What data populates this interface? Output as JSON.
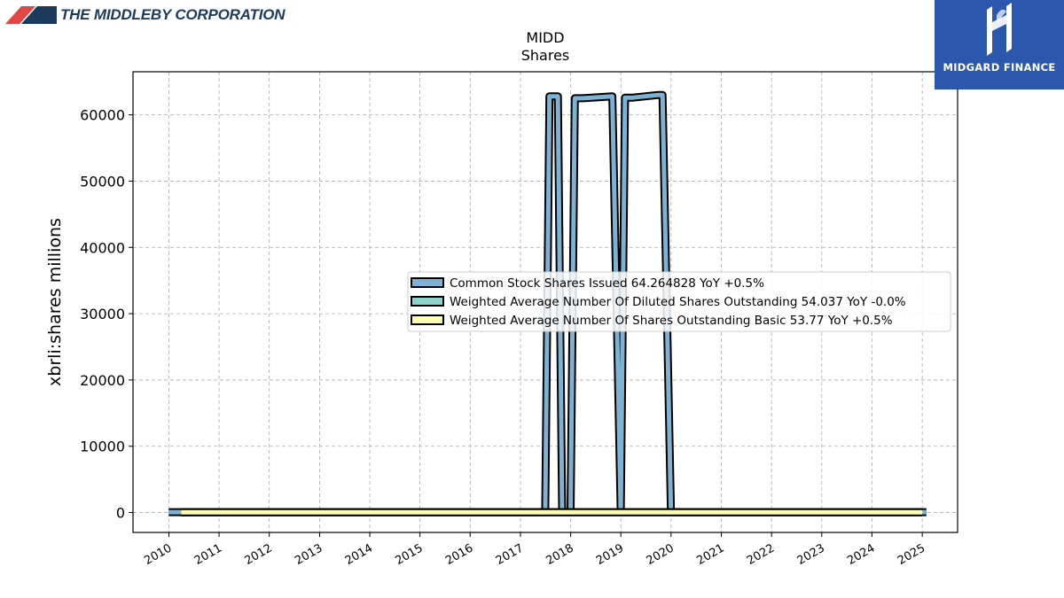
{
  "brand": {
    "left_name": "THE MIDDLEBY CORPORATION",
    "right_name": "MIDGARD FINANCE",
    "right_bg": "#2b57ad",
    "left_accent": "#e04848",
    "left_dark": "#1b3a5c"
  },
  "chart_data": {
    "type": "area",
    "title": "MIDD",
    "subtitle": "Shares",
    "xlabel": "",
    "ylabel": "xbrli:shares millions",
    "xlim": [
      "2009-04-15",
      "2025-09-15"
    ],
    "ylim": [
      -3000,
      66500
    ],
    "yticks": [
      0,
      10000,
      20000,
      30000,
      40000,
      50000,
      60000
    ],
    "ytick_labels": [
      "0",
      "10000",
      "20000",
      "30000",
      "40000",
      "50000",
      "60000"
    ],
    "xtick_labels": [
      "2010",
      "2011",
      "2012",
      "2013",
      "2014",
      "2015",
      "2016",
      "2017",
      "2018",
      "2019",
      "2020",
      "2021",
      "2022",
      "2023",
      "2024",
      "2025"
    ],
    "grid": true,
    "legend_position": "center-right",
    "series": [
      {
        "name": "Common Stock Shares Issued  64.264828 YoY +0.5%",
        "color": "#7fb1d3",
        "x": [
          "2009-12-31",
          "2017-06-30",
          "2017-07-31",
          "2017-09-30",
          "2017-10-31",
          "2017-12-31",
          "2018-01-31",
          "2018-03-31",
          "2018-10-31",
          "2018-12-31",
          "2019-01-31",
          "2019-03-31",
          "2019-09-30",
          "2019-10-31",
          "2019-12-31",
          "2025-01-31"
        ],
        "y": [
          60,
          60,
          62800,
          62800,
          60,
          60,
          62500,
          62500,
          62800,
          60,
          62600,
          62600,
          63000,
          63000,
          60,
          64.26
        ]
      },
      {
        "name": "Weighted Average Number Of Diluted Shares Outstanding  54.037 YoY -0.0%",
        "color": "#8dd3c7",
        "x": [
          "2010-03-31",
          "2014-06-30",
          "2014-12-31",
          "2024-12-31"
        ],
        "y": [
          52,
          54,
          54,
          54.04
        ]
      },
      {
        "name": "Weighted Average Number Of Shares Outstanding Basic  53.77 YoY +0.5%",
        "color": "#ffffb3",
        "x": [
          "2010-03-31",
          "2014-06-30",
          "2014-12-31",
          "2024-12-31"
        ],
        "y": [
          52,
          53,
          53,
          53.77
        ]
      }
    ]
  }
}
